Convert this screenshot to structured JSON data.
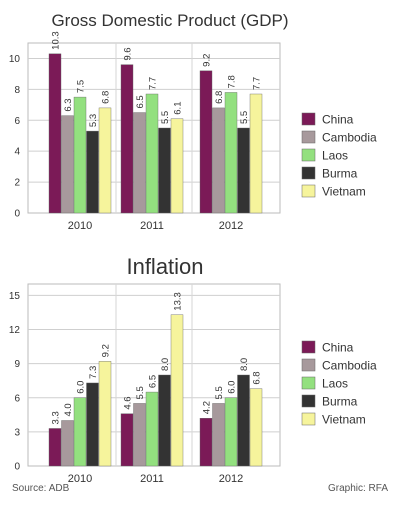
{
  "source": "Source: ADB",
  "credit": "Graphic: RFA",
  "colors": {
    "China": "#7b1a57",
    "Cambodia": "#a7999c",
    "Laos": "#93e07f",
    "Burma": "#333333",
    "Vietnam": "#f6f49c"
  },
  "chart_data": [
    {
      "type": "bar",
      "title": "Gross Domestic Product (GDP)",
      "categories": [
        "2010",
        "2011",
        "2012"
      ],
      "series": [
        {
          "name": "China",
          "values": [
            10.3,
            9.6,
            9.2
          ]
        },
        {
          "name": "Cambodia",
          "values": [
            6.3,
            6.5,
            6.8
          ]
        },
        {
          "name": "Laos",
          "values": [
            7.5,
            7.7,
            7.8
          ]
        },
        {
          "name": "Burma",
          "values": [
            5.3,
            5.5,
            5.5
          ]
        },
        {
          "name": "Vietnam",
          "values": [
            6.8,
            6.1,
            7.7
          ]
        }
      ],
      "ylim": [
        0,
        11
      ],
      "yticks": [
        0,
        2,
        4,
        6,
        8,
        10
      ],
      "grid": true,
      "legend": "right"
    },
    {
      "type": "bar",
      "title": "Inflation",
      "categories": [
        "2010",
        "2011",
        "2012"
      ],
      "series": [
        {
          "name": "China",
          "values": [
            3.3,
            4.6,
            4.2
          ]
        },
        {
          "name": "Cambodia",
          "values": [
            4.0,
            5.5,
            5.5
          ]
        },
        {
          "name": "Laos",
          "values": [
            6.0,
            6.5,
            6.0
          ]
        },
        {
          "name": "Burma",
          "values": [
            7.3,
            8.0,
            8.0
          ]
        },
        {
          "name": "Vietnam",
          "values": [
            9.2,
            13.3,
            6.8
          ]
        }
      ],
      "ylim": [
        0,
        16
      ],
      "yticks": [
        0,
        3,
        6,
        9,
        12,
        15
      ],
      "grid": true,
      "legend": "right"
    }
  ]
}
